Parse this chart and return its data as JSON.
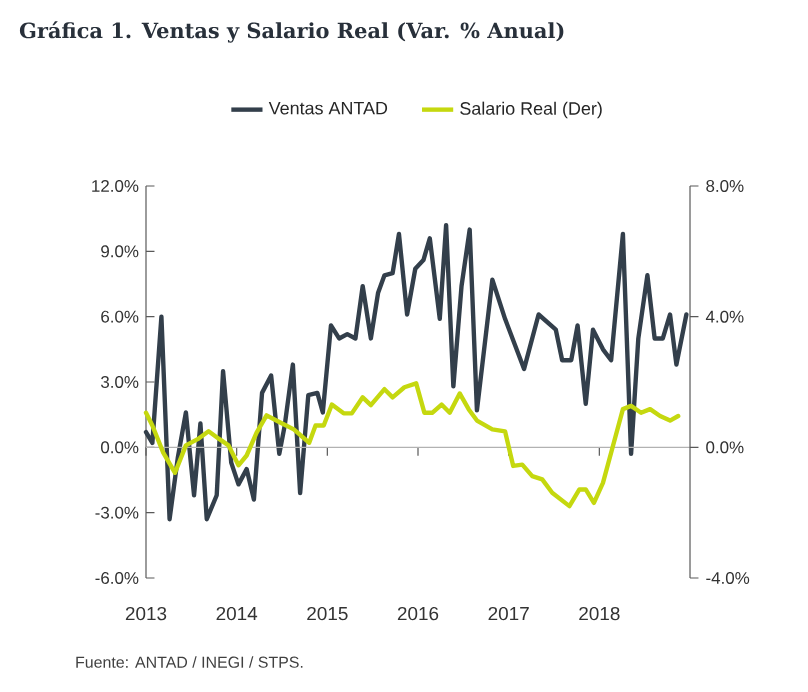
{
  "chart_data": {
    "type": "line",
    "title": "Gráfica 1. Ventas y Salario Real (Var. % Anual)",
    "legend": "top",
    "annotations": [
      "Fuente: ANTAD / INEGI / STPS."
    ],
    "xlim": [
      2013,
      2019
    ],
    "xticks": [
      2013,
      2014,
      2015,
      2016,
      2017,
      2018
    ],
    "ylim": [
      -6,
      12
    ],
    "yticks": [
      {
        "value": -6,
        "label": "-6.0%"
      },
      {
        "value": -3,
        "label": "-3.0%"
      },
      {
        "value": 0,
        "label": "0.0%"
      },
      {
        "value": 3,
        "label": "3.0%"
      },
      {
        "value": 6,
        "label": "6.0%"
      },
      {
        "value": 9,
        "label": "9.0%"
      },
      {
        "value": 12,
        "label": "12.0%"
      }
    ],
    "y2lim": [
      -4,
      8
    ],
    "y2ticks": [
      {
        "value": -4,
        "label": "-4.0%"
      },
      {
        "value": 0,
        "label": "0.0%"
      },
      {
        "value": 4,
        "label": "4.0%"
      },
      {
        "value": 8,
        "label": "8.0%"
      }
    ],
    "series": [
      {
        "name": "Ventas ANTAD",
        "color": "#333f4b",
        "x": [
          2013.0,
          2013.07,
          2013.17,
          2013.26,
          2013.35,
          2013.44,
          2013.53,
          2013.6,
          2013.67,
          2013.78,
          2013.85,
          2013.94,
          2014.02,
          2014.11,
          2014.19,
          2014.28,
          2014.38,
          2014.47,
          2014.53,
          2014.62,
          2014.7,
          2014.79,
          2014.89,
          2014.95,
          2015.04,
          2015.13,
          2015.22,
          2015.31,
          2015.39,
          2015.48,
          2015.56,
          2015.63,
          2015.72,
          2015.79,
          2015.88,
          2015.97,
          2016.06,
          2016.13,
          2016.24,
          2016.31,
          2016.39,
          2016.48,
          2016.57,
          2016.65,
          2016.82,
          2016.96,
          2017.17,
          2017.33,
          2017.52,
          2017.59,
          2017.69,
          2017.76,
          2017.85,
          2017.93,
          2018.04,
          2018.13,
          2018.26,
          2018.35,
          2018.43,
          2018.53,
          2018.61,
          2018.7,
          2018.78,
          2018.85,
          2018.96
        ],
        "values": [
          0.7,
          0.2,
          6.0,
          -3.3,
          -0.5,
          1.6,
          -2.2,
          1.1,
          -3.3,
          -2.2,
          3.5,
          -0.7,
          -1.7,
          -1.0,
          -2.4,
          2.5,
          3.3,
          -0.3,
          1.0,
          3.8,
          -2.1,
          2.4,
          2.5,
          1.6,
          5.6,
          5.0,
          5.2,
          5.0,
          7.4,
          5.0,
          7.1,
          7.9,
          8.0,
          9.8,
          6.1,
          8.2,
          8.6,
          9.6,
          5.9,
          10.2,
          2.8,
          7.4,
          10.0,
          1.7,
          7.7,
          5.9,
          3.6,
          6.1,
          5.4,
          4.0,
          4.0,
          5.6,
          2.0,
          5.4,
          4.5,
          4.0,
          9.8,
          -0.3,
          5.0,
          7.9,
          5.0,
          5.0,
          6.1,
          3.8,
          6.1
        ]
      },
      {
        "name": "Salario Real (Der)",
        "color": "#c5d80f",
        "axis": "y2",
        "x": [
          2013.0,
          2013.07,
          2013.19,
          2013.32,
          2013.44,
          2013.57,
          2013.69,
          2013.81,
          2013.91,
          2014.02,
          2014.11,
          2014.22,
          2014.33,
          2014.48,
          2014.63,
          2014.8,
          2014.87,
          2014.96,
          2015.05,
          2015.18,
          2015.27,
          2015.39,
          2015.48,
          2015.63,
          2015.72,
          2015.85,
          2015.98,
          2016.07,
          2016.16,
          2016.26,
          2016.35,
          2016.46,
          2016.56,
          2016.65,
          2016.82,
          2016.96,
          2017.05,
          2017.15,
          2017.26,
          2017.37,
          2017.48,
          2017.67,
          2017.78,
          2017.85,
          2017.94,
          2018.04,
          2018.15,
          2018.26,
          2018.35,
          2018.46,
          2018.56,
          2018.67,
          2018.78,
          2018.87
        ],
        "values": [
          1.06,
          0.67,
          -0.16,
          -0.78,
          0.06,
          0.25,
          0.49,
          0.25,
          0.06,
          -0.55,
          -0.25,
          0.45,
          0.98,
          0.76,
          0.55,
          0.14,
          0.67,
          0.67,
          1.31,
          1.04,
          1.04,
          1.53,
          1.29,
          1.78,
          1.53,
          1.84,
          1.96,
          1.06,
          1.06,
          1.31,
          1.06,
          1.65,
          1.16,
          0.82,
          0.55,
          0.49,
          -0.57,
          -0.53,
          -0.88,
          -0.98,
          -1.39,
          -1.8,
          -1.29,
          -1.29,
          -1.7,
          -1.09,
          0.04,
          1.17,
          1.27,
          1.06,
          1.17,
          0.96,
          0.82,
          0.96
        ]
      }
    ]
  }
}
